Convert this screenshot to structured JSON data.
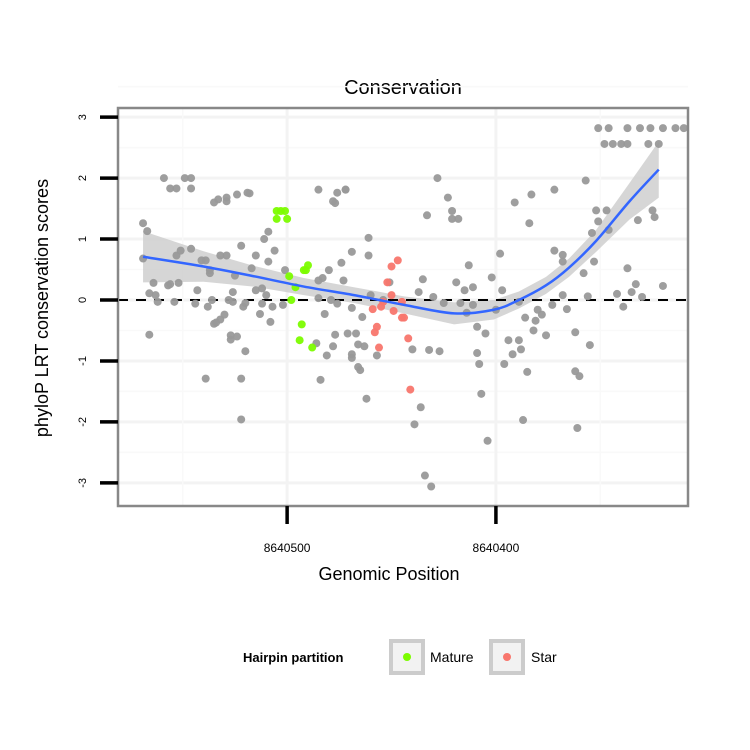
{
  "chart_data": {
    "type": "scatter",
    "title": "Conservation",
    "xlabel": "Genomic Position",
    "ylabel": "phyloP LRT conservation scores",
    "xlim": [
      8640581,
      8640308
    ],
    "ylim": [
      -3.38,
      3.15
    ],
    "x_reversed": true,
    "x_ticks": [
      8640500,
      8640400
    ],
    "x_tick_labels": [
      "8640500",
      "8640400"
    ],
    "y_ticks": [
      -3,
      -2,
      -1,
      0,
      1,
      2,
      3
    ],
    "y_tick_labels": [
      "-3",
      "-2",
      "-1",
      "0",
      "1",
      "2",
      "3"
    ],
    "grid": true,
    "reference_line": {
      "y": 0,
      "style": "dashed"
    },
    "legend": {
      "title": "Hairpin partition",
      "placement": "bottom",
      "entries": [
        "Mature",
        "Star"
      ]
    },
    "colors": {
      "other": "#999999",
      "Mature": "#7CFC00",
      "Star": "#F8766D",
      "smooth": "#3366FF",
      "ribbon": "#CCCCCC"
    },
    "series": [
      {
        "name": "Other",
        "points": [
          [
            8640569,
            1.26
          ],
          [
            8640567,
            1.13
          ],
          [
            8640569,
            0.68
          ],
          [
            8640566,
            -0.57
          ],
          [
            8640563,
            0.08
          ],
          [
            8640559,
            2.0
          ],
          [
            8640556,
            1.83
          ],
          [
            8640553,
            1.83
          ],
          [
            8640549,
            2.0
          ],
          [
            8640546,
            2.0
          ],
          [
            8640546,
            1.83
          ],
          [
            8640557,
            0.24
          ],
          [
            8640553,
            0.73
          ],
          [
            8640546,
            0.84
          ],
          [
            8640539,
            0.65
          ],
          [
            8640536,
            0
          ],
          [
            8640537,
            0.49
          ],
          [
            8640535,
            -0.39
          ],
          [
            8640527,
            -0.65
          ],
          [
            8640532,
            -0.32
          ],
          [
            8640526,
            -0.03
          ],
          [
            8640522,
            0.89
          ],
          [
            8640529,
            0.73
          ],
          [
            8640533,
            1.65
          ],
          [
            8640529,
            1.62
          ],
          [
            8640519,
            1.76
          ],
          [
            8640524,
            1.73
          ],
          [
            8640521,
            -0.11
          ],
          [
            8640515,
            0.16
          ],
          [
            8640512,
            -0.06
          ],
          [
            8640513,
            -0.23
          ],
          [
            8640520,
            -0.84
          ],
          [
            8640522,
            -1.29
          ],
          [
            8640522,
            -1.96
          ],
          [
            8640539,
            -1.29
          ],
          [
            8640511,
            1.0
          ],
          [
            8640509,
            1.12
          ],
          [
            8640506,
            0.81
          ],
          [
            8640501,
            0.49
          ],
          [
            8640502,
            -0.08
          ],
          [
            8640485,
            0.03
          ],
          [
            8640483,
            0.36
          ],
          [
            8640477,
            -0.57
          ],
          [
            8640476,
            -0.06
          ],
          [
            8640469,
            -0.89
          ],
          [
            8640473,
            0.32
          ],
          [
            8640474,
            0.61
          ],
          [
            8640469,
            0.79
          ],
          [
            8640461,
            1.02
          ],
          [
            8640454,
            0
          ],
          [
            8640451,
            0.29
          ],
          [
            8640466,
            -1.1
          ],
          [
            8640462,
            -1.62
          ],
          [
            8640457,
            -0.91
          ],
          [
            8640485,
            1.81
          ],
          [
            8640478,
            1.62
          ],
          [
            8640472,
            1.81
          ],
          [
            8640434,
            -2.88
          ],
          [
            8640431,
            -3.06
          ],
          [
            8640436,
            -1.76
          ],
          [
            8640439,
            -2.04
          ],
          [
            8640407,
            -1.54
          ],
          [
            8640404,
            -2.31
          ],
          [
            8640387,
            -1.97
          ],
          [
            8640361,
            -2.1
          ],
          [
            8640484,
            -1.31
          ],
          [
            8640465,
            -1.15
          ],
          [
            8640428,
            2.0
          ],
          [
            8640423,
            1.68
          ],
          [
            8640421,
            1.46
          ],
          [
            8640421,
            1.33
          ],
          [
            8640418,
            1.33
          ],
          [
            8640433,
            1.39
          ],
          [
            8640391,
            1.6
          ],
          [
            8640383,
            1.73
          ],
          [
            8640372,
            1.81
          ],
          [
            8640357,
            1.96
          ],
          [
            8640384,
            1.26
          ],
          [
            8640398,
            0.76
          ],
          [
            8640413,
            0.57
          ],
          [
            8640435,
            0.34
          ],
          [
            8640419,
            0.29
          ],
          [
            8640402,
            0.37
          ],
          [
            8640415,
            0.16
          ],
          [
            8640411,
            0.21
          ],
          [
            8640397,
            0.16
          ],
          [
            8640437,
            0.13
          ],
          [
            8640430,
            0.05
          ],
          [
            8640425,
            -0.05
          ],
          [
            8640417,
            -0.05
          ],
          [
            8640411,
            -0.08
          ],
          [
            8640414,
            -0.21
          ],
          [
            8640400,
            -0.16
          ],
          [
            8640389,
            -0.03
          ],
          [
            8640380,
            -0.16
          ],
          [
            8640378,
            -0.24
          ],
          [
            8640381,
            -0.34
          ],
          [
            8640386,
            -0.29
          ],
          [
            8640373,
            -0.08
          ],
          [
            8640368,
            0.08
          ],
          [
            8640366,
            -0.15
          ],
          [
            8640372,
            0.81
          ],
          [
            8640368,
            0.74
          ],
          [
            8640368,
            0.63
          ],
          [
            8640356,
            0.06
          ],
          [
            8640358,
            0.44
          ],
          [
            8640353,
            0.63
          ],
          [
            8640354,
            1.1
          ],
          [
            8640351,
            1.29
          ],
          [
            8640352,
            1.47
          ],
          [
            8640347,
            1.47
          ],
          [
            8640346,
            1.15
          ],
          [
            8640337,
            0.52
          ],
          [
            8640342,
            0.1
          ],
          [
            8640339,
            -0.11
          ],
          [
            8640335,
            0.13
          ],
          [
            8640333,
            0.26
          ],
          [
            8640330,
            0.05
          ],
          [
            8640332,
            1.31
          ],
          [
            8640325,
            1.47
          ],
          [
            8640324,
            1.36
          ],
          [
            8640320,
            0.23
          ],
          [
            8640409,
            -0.44
          ],
          [
            8640405,
            -0.55
          ],
          [
            8640394,
            -0.66
          ],
          [
            8640389,
            -0.66
          ],
          [
            8640388,
            -0.81
          ],
          [
            8640392,
            -0.89
          ],
          [
            8640396,
            -1.05
          ],
          [
            8640385,
            -1.18
          ],
          [
            8640382,
            -0.5
          ],
          [
            8640376,
            -0.58
          ],
          [
            8640362,
            -0.53
          ],
          [
            8640355,
            -0.74
          ],
          [
            8640362,
            -1.17
          ],
          [
            8640360,
            -1.25
          ],
          [
            8640409,
            -0.87
          ],
          [
            8640408,
            -1.05
          ],
          [
            8640440,
            -0.81
          ],
          [
            8640432,
            -0.82
          ],
          [
            8640427,
            -0.84
          ],
          [
            8640351,
            2.82
          ],
          [
            8640346,
            2.82
          ],
          [
            8640337,
            2.82
          ],
          [
            8640331,
            2.82
          ],
          [
            8640326,
            2.82
          ],
          [
            8640320,
            2.82
          ],
          [
            8640314,
            2.82
          ],
          [
            8640310,
            2.82
          ],
          [
            8640348,
            2.56
          ],
          [
            8640344,
            2.56
          ],
          [
            8640340,
            2.56
          ],
          [
            8640337,
            2.56
          ],
          [
            8640327,
            2.56
          ],
          [
            8640322,
            2.56
          ],
          [
            8640564,
            0.28
          ],
          [
            8640562,
            -0.03
          ],
          [
            8640554,
            -0.03
          ],
          [
            8640556,
            0.26
          ],
          [
            8640552,
            0.28
          ],
          [
            8640566,
            0.11
          ],
          [
            8640551,
            0.81
          ],
          [
            8640541,
            0.65
          ],
          [
            8640537,
            0.44
          ],
          [
            8640543,
            0.16
          ],
          [
            8640544,
            -0.06
          ],
          [
            8640538,
            -0.11
          ],
          [
            8640534,
            -0.37
          ],
          [
            8640530,
            -0.24
          ],
          [
            8640526,
            0.13
          ],
          [
            8640528,
            0
          ],
          [
            8640532,
            0.73
          ],
          [
            8640535,
            1.6
          ],
          [
            8640529,
            1.68
          ],
          [
            8640518,
            1.75
          ],
          [
            8640525,
            0.4
          ],
          [
            8640517,
            0.52
          ],
          [
            8640515,
            0.73
          ],
          [
            8640509,
            0.63
          ],
          [
            8640512,
            0.19
          ],
          [
            8640510,
            0.08
          ],
          [
            8640520,
            -0.05
          ],
          [
            8640507,
            -0.11
          ],
          [
            8640508,
            -0.36
          ],
          [
            8640527,
            -0.58
          ],
          [
            8640524,
            -0.6
          ],
          [
            8640480,
            0.49
          ],
          [
            8640485,
            0.32
          ],
          [
            8640482,
            -0.23
          ],
          [
            8640479,
            0
          ],
          [
            8640469,
            -0.13
          ],
          [
            8640464,
            -0.28
          ],
          [
            8640460,
            0.08
          ],
          [
            8640461,
            0.73
          ],
          [
            8640471,
            -0.55
          ],
          [
            8640467,
            -0.55
          ],
          [
            8640466,
            -0.73
          ],
          [
            8640463,
            -0.76
          ],
          [
            8640486,
            -0.71
          ],
          [
            8640478,
            -0.76
          ],
          [
            8640481,
            -0.91
          ],
          [
            8640469,
            -0.95
          ],
          [
            8640477,
            1.59
          ],
          [
            8640476,
            1.76
          ],
          [
            8640472,
            1.81
          ]
        ]
      },
      {
        "name": "Mature",
        "points": [
          [
            8640503,
            1.46
          ],
          [
            8640505,
            1.46
          ],
          [
            8640501,
            1.46
          ],
          [
            8640505,
            1.33
          ],
          [
            8640500,
            1.33
          ],
          [
            8640490,
            0.57
          ],
          [
            8640491,
            0.49
          ],
          [
            8640492,
            0.49
          ],
          [
            8640499,
            0.39
          ],
          [
            8640496,
            0.21
          ],
          [
            8640498,
            0
          ],
          [
            8640493,
            -0.4
          ],
          [
            8640494,
            -0.66
          ],
          [
            8640488,
            -0.78
          ]
        ]
      },
      {
        "name": "Star",
        "points": [
          [
            8640447,
            0.65
          ],
          [
            8640450,
            0.55
          ],
          [
            8640452,
            0.29
          ],
          [
            8640450,
            0.08
          ],
          [
            8640454,
            -0.03
          ],
          [
            8640455,
            -0.11
          ],
          [
            8640459,
            -0.15
          ],
          [
            8640445,
            -0.03
          ],
          [
            8640449,
            -0.18
          ],
          [
            8640445,
            -0.29
          ],
          [
            8640444,
            -0.29
          ],
          [
            8640457,
            -0.44
          ],
          [
            8640458,
            -0.53
          ],
          [
            8640456,
            -0.78
          ],
          [
            8640442,
            -0.63
          ],
          [
            8640441,
            -1.47
          ]
        ]
      }
    ],
    "smooth": {
      "x": [
        8640569,
        8640540,
        8640516,
        8640492,
        8640468,
        8640444,
        8640420,
        8640401,
        8640389,
        8640376,
        8640365,
        8640352,
        8640336,
        8640322
      ],
      "y": [
        0.71,
        0.55,
        0.39,
        0.22,
        0.08,
        -0.08,
        -0.22,
        -0.16,
        0,
        0.24,
        0.53,
        0.97,
        1.62,
        2.14
      ],
      "se": [
        0.42,
        0.25,
        0.17,
        0.14,
        0.13,
        0.14,
        0.18,
        0.16,
        0.14,
        0.14,
        0.15,
        0.18,
        0.3,
        0.46
      ]
    }
  }
}
